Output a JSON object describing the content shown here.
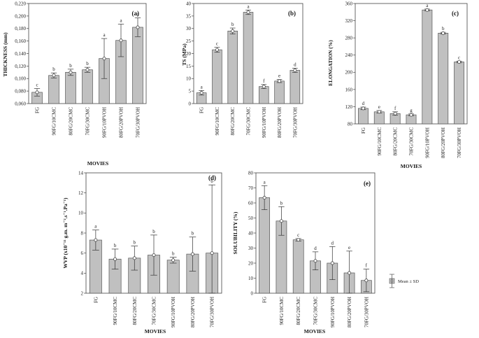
{
  "chart_data": [
    {
      "type": "bar",
      "panel": "(a)",
      "title": "",
      "xlabel": "MOVIES",
      "ylabel": "THICKNESS (mm)",
      "ylim": [
        0.06,
        0.22
      ],
      "yticks": [
        "0,060",
        "0,080",
        "0,100",
        "0,120",
        "0,140",
        "0,160",
        "0,180",
        "0,200",
        "0,220"
      ],
      "categories": [
        "FG",
        "90FG/10CMC",
        "80FG/20CMC",
        "70FG/30CMC",
        "90FG/10PVOH",
        "80FG/20PVOH",
        "70FG/30PVOH"
      ],
      "values": [
        0.078,
        0.105,
        0.11,
        0.114,
        0.132,
        0.161,
        0.182
      ],
      "sd": [
        0.006,
        0.004,
        0.005,
        0.004,
        0.032,
        0.026,
        0.015
      ],
      "letters": [
        "c",
        "b",
        "b",
        "b",
        "a",
        "a",
        "a"
      ]
    },
    {
      "type": "bar",
      "panel": "(b)",
      "title": "",
      "xlabel": "",
      "ylabel": "TS (MPa)",
      "ylim": [
        0,
        40
      ],
      "yticks": [
        "0",
        "5",
        "10",
        "15",
        "20",
        "25",
        "30",
        "35",
        "40"
      ],
      "categories": [
        "FG",
        "90FG/10CMC",
        "80FG/20CMC",
        "70FG/30CMC",
        "90FG/10PVOH",
        "80FG/20PVOH",
        "70FG/30PVOH"
      ],
      "values": [
        4.3,
        21.5,
        29.0,
        36.5,
        6.8,
        9.0,
        13.3
      ],
      "sd": [
        0.9,
        1.0,
        1.2,
        0.9,
        0.8,
        0.6,
        0.8
      ],
      "letters": [
        "a",
        "c",
        "b",
        "a",
        "f",
        "e",
        "d"
      ]
    },
    {
      "type": "bar",
      "panel": "(c)",
      "title": "",
      "xlabel": "MOVIES",
      "ylabel": "ELONGATION (%)",
      "ylim": [
        80,
        360
      ],
      "yticks": [
        "80",
        "120",
        "160",
        "200",
        "240",
        "280",
        "320",
        "360"
      ],
      "categories": [
        "FG",
        "90FG/10CMC",
        "80FG/20CMC",
        "70FG/30CMC",
        "90FG/10PVOH",
        "80FG/20PVOH",
        "70FG/30PVOH"
      ],
      "values": [
        116,
        108,
        104,
        101,
        345,
        291,
        224
      ],
      "sd": [
        3,
        3,
        4,
        2,
        2,
        2,
        2
      ],
      "letters": [
        "d",
        "e",
        "f",
        "g",
        "a",
        "b",
        "c"
      ]
    },
    {
      "type": "bar",
      "panel": "(d)",
      "title": "",
      "xlabel": "MOVIES",
      "ylabel": "WVP (x10⁻¹¹ g.m. m⁻².s⁻¹.Pa⁻¹)",
      "ylim": [
        2,
        14
      ],
      "yticks": [
        "2",
        "4",
        "6",
        "8",
        "10",
        "12",
        "14"
      ],
      "categories": [
        "FG",
        "90FG/10CMC",
        "80FG/20CMC",
        "70FG/30CMC",
        "90FG/10PVOH",
        "80FG/20PVOH",
        "70FG/30PVOH"
      ],
      "values": [
        7.3,
        5.4,
        5.5,
        5.8,
        5.3,
        5.9,
        6.0
      ],
      "sd": [
        1.0,
        1.0,
        1.2,
        2.0,
        0.3,
        1.7,
        6.8
      ],
      "letters": [
        "a",
        "b",
        "b",
        "b",
        "b",
        "b",
        "b"
      ]
    },
    {
      "type": "bar",
      "panel": "(e)",
      "title": "",
      "xlabel": "MOVIES",
      "ylabel": "SOLUBILITY (%)",
      "ylim": [
        0,
        80
      ],
      "yticks": [
        "0",
        "10",
        "20",
        "30",
        "40",
        "50",
        "60",
        "70",
        "80"
      ],
      "categories": [
        "FG",
        "90FG/10CMC",
        "80FG/20CMC",
        "70FG/30CMC",
        "90FG/10PVOH",
        "80FG/20PVOH",
        "70FG/30PVOH"
      ],
      "values": [
        63.5,
        48.0,
        35.5,
        21.5,
        20.0,
        13.5,
        8.5
      ],
      "sd": [
        8.0,
        9.5,
        0.8,
        6.0,
        11.0,
        14.5,
        7.5
      ],
      "letters": [
        "a",
        "b",
        "c",
        "d",
        "d",
        "e",
        "f"
      ],
      "legend": {
        "label": "Mean ± SD",
        "placement": "right"
      }
    }
  ]
}
